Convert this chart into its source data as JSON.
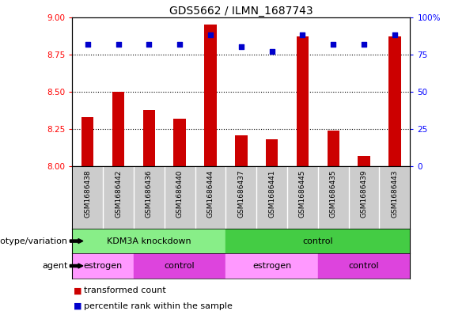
{
  "title": "GDS5662 / ILMN_1687743",
  "samples": [
    "GSM1686438",
    "GSM1686442",
    "GSM1686436",
    "GSM1686440",
    "GSM1686444",
    "GSM1686437",
    "GSM1686441",
    "GSM1686445",
    "GSM1686435",
    "GSM1686439",
    "GSM1686443"
  ],
  "transformed_counts": [
    8.33,
    8.5,
    8.38,
    8.32,
    8.95,
    8.21,
    8.18,
    8.87,
    8.24,
    8.07,
    8.87
  ],
  "percentile_ranks": [
    82,
    82,
    82,
    82,
    88,
    80,
    77,
    88,
    82,
    82,
    88
  ],
  "ylim_left": [
    8.0,
    9.0
  ],
  "ylim_right": [
    0,
    100
  ],
  "yticks_left": [
    8.0,
    8.25,
    8.5,
    8.75,
    9.0
  ],
  "yticks_right": [
    0,
    25,
    50,
    75,
    100
  ],
  "bar_color": "#cc0000",
  "dot_color": "#0000cc",
  "sample_bg_color": "#cccccc",
  "genotype_colors": [
    "#88ee88",
    "#44cc44"
  ],
  "agent_colors": [
    "#ff99ff",
    "#dd44dd"
  ],
  "genotype_groups": [
    {
      "label": "KDM3A knockdown",
      "start": 0,
      "end": 5,
      "color_idx": 0
    },
    {
      "label": "control",
      "start": 5,
      "end": 11,
      "color_idx": 1
    }
  ],
  "agent_groups": [
    {
      "label": "estrogen",
      "start": 0,
      "end": 2,
      "color_idx": 0
    },
    {
      "label": "control",
      "start": 2,
      "end": 5,
      "color_idx": 1
    },
    {
      "label": "estrogen",
      "start": 5,
      "end": 8,
      "color_idx": 0
    },
    {
      "label": "control",
      "start": 8,
      "end": 11,
      "color_idx": 1
    }
  ],
  "legend_items": [
    {
      "label": "transformed count",
      "color": "#cc0000"
    },
    {
      "label": "percentile rank within the sample",
      "color": "#0000cc"
    }
  ],
  "left_labels": [
    "genotype/variation",
    "agent"
  ],
  "grid_yticks": [
    8.25,
    8.5,
    8.75
  ]
}
